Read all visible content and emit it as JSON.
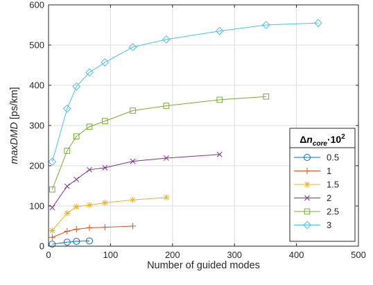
{
  "chart_data": {
    "type": "line",
    "xlabel": "Number of guided modes",
    "ylabel": "maxDMD [ps/km]",
    "xlim": [
      0,
      500
    ],
    "ylim": [
      0,
      600
    ],
    "xticks": [
      0,
      100,
      200,
      300,
      400,
      500
    ],
    "yticks": [
      0,
      100,
      200,
      300,
      400,
      500,
      600
    ],
    "grid": true,
    "legend": {
      "position": "right",
      "title": "Δn_core·10^2",
      "title_parts": {
        "delta": "Δ",
        "n": "n",
        "sub": "core",
        "dot_ten": "·10",
        "sup": "2"
      }
    },
    "series": [
      {
        "name": "0.5",
        "color": "#0072BD",
        "marker": "circle",
        "x": [
          6,
          30,
          45,
          66
        ],
        "y": [
          5,
          10,
          12,
          13
        ]
      },
      {
        "name": "1",
        "color": "#D95319",
        "marker": "plus",
        "x": [
          6,
          30,
          45,
          66,
          91,
          136
        ],
        "y": [
          22,
          37,
          42,
          46,
          47,
          50
        ]
      },
      {
        "name": "1.5",
        "color": "#EDB120",
        "marker": "asterisk",
        "x": [
          6,
          30,
          45,
          66,
          91,
          136,
          190
        ],
        "y": [
          39,
          82,
          98,
          102,
          108,
          115,
          121
        ]
      },
      {
        "name": "2",
        "color": "#7E2F8E",
        "marker": "x",
        "x": [
          6,
          30,
          45,
          66,
          91,
          136,
          190,
          276
        ],
        "y": [
          96,
          149,
          166,
          190,
          195,
          211,
          219,
          228
        ]
      },
      {
        "name": "2.5",
        "color": "#77AC30",
        "marker": "square",
        "x": [
          6,
          30,
          45,
          66,
          91,
          136,
          190,
          276,
          351
        ],
        "y": [
          141,
          237,
          273,
          297,
          311,
          337,
          349,
          364,
          372
        ]
      },
      {
        "name": "3",
        "color": "#4DBEEE",
        "marker": "diamond",
        "x": [
          6,
          30,
          45,
          66,
          91,
          136,
          190,
          276,
          351,
          435
        ],
        "y": [
          210,
          342,
          397,
          432,
          457,
          495,
          514,
          535,
          550,
          555
        ]
      }
    ]
  }
}
